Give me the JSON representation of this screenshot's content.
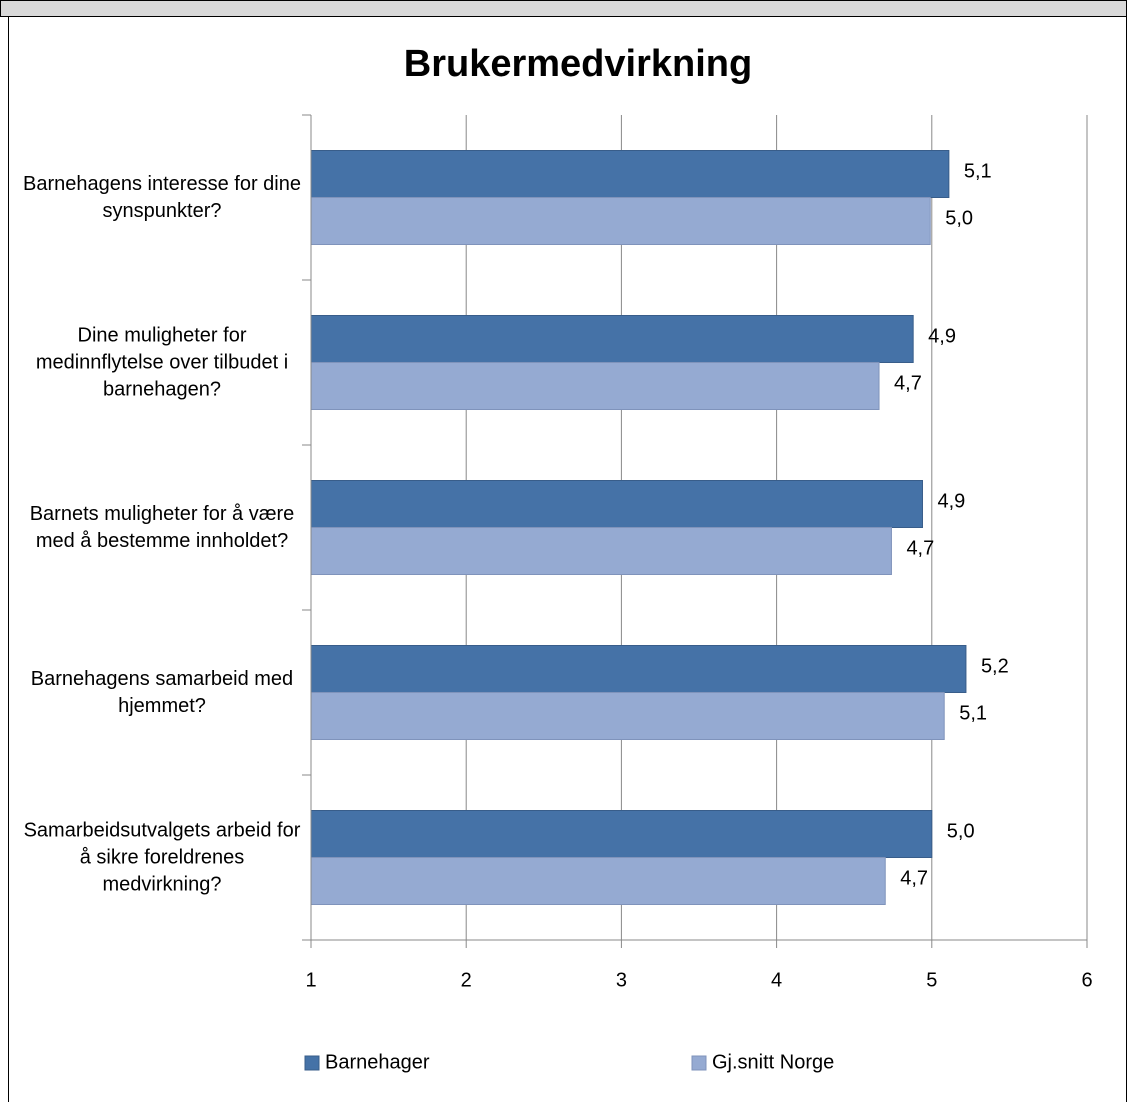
{
  "chart_data": {
    "type": "bar",
    "orientation": "horizontal",
    "title": "Brukermedvirkning",
    "categories": [
      "Barnehagens interesse for dine synspunkter?",
      "Dine muligheter for medinnflytelse over tilbudet i barnehagen?",
      "Barnets muligheter for å være med å bestemme innholdet?",
      "Barnehagens samarbeid med hjemmet?",
      "Samarbeidsutvalgets arbeid for å sikre foreldrenes medvirkning?"
    ],
    "series": [
      {
        "name": "Barnehager",
        "color": "#4572a7",
        "values": [
          5.11,
          4.88,
          4.94,
          5.22,
          5.0
        ],
        "value_labels": [
          "5,1",
          "4,9",
          "4,9",
          "5,2",
          "5,0"
        ]
      },
      {
        "name": "Gj.snitt Norge",
        "color": "#95aad2",
        "values": [
          4.99,
          4.66,
          4.74,
          5.08,
          4.7
        ],
        "value_labels": [
          "5,0",
          "4,7",
          "4,7",
          "5,1",
          "4,7"
        ]
      }
    ],
    "xlim": [
      1,
      6
    ],
    "xticks": [
      1,
      2,
      3,
      4,
      5,
      6
    ],
    "grid": true,
    "legend": "bottom"
  }
}
